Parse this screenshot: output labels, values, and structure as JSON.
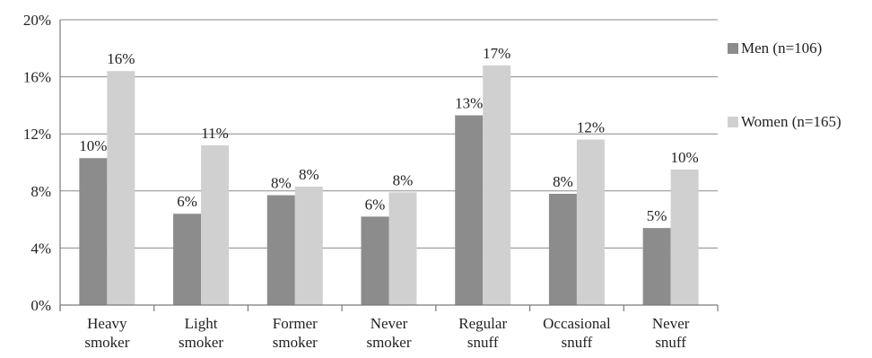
{
  "chart_data": {
    "type": "bar",
    "categories": [
      [
        "Heavy",
        "smoker"
      ],
      [
        "Light",
        "smoker"
      ],
      [
        "Former",
        "smoker"
      ],
      [
        "Never",
        "smoker"
      ],
      [
        "Regular",
        "snuff"
      ],
      [
        "Occasional",
        "snuff"
      ],
      [
        "Never",
        "snuff"
      ]
    ],
    "series": [
      {
        "name": "Men (n=106)",
        "color": "#8c8c8c",
        "values": [
          10.3,
          6.4,
          7.7,
          6.2,
          13.3,
          7.8,
          5.4
        ],
        "labels": [
          "10%",
          "6%",
          "8%",
          "6%",
          "13%",
          "8%",
          "5%"
        ]
      },
      {
        "name": "Women (n=165)",
        "color": "#d0d0d0",
        "values": [
          16.4,
          11.2,
          8.3,
          7.9,
          16.8,
          11.6,
          9.5
        ],
        "labels": [
          "16%",
          "11%",
          "8%",
          "8%",
          "17%",
          "12%",
          "10%"
        ]
      }
    ],
    "yticks": [
      0,
      4,
      8,
      12,
      16,
      20
    ],
    "ytick_labels": [
      "0%",
      "4%",
      "8%",
      "12%",
      "16%",
      "20%"
    ],
    "ylim": [
      0,
      20
    ],
    "grid": true,
    "legend_position": "right"
  }
}
